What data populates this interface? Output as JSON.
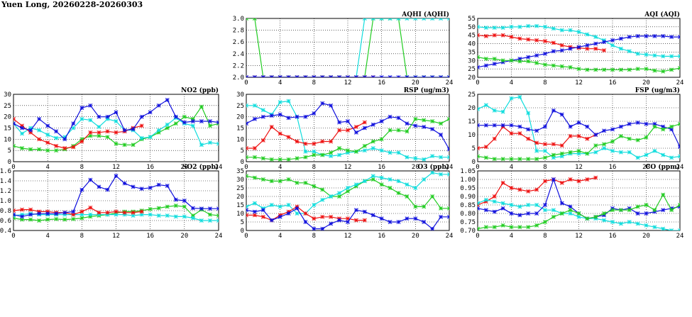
{
  "page": {
    "title": "Yuen Long, 20260228-20260303"
  },
  "colors": {
    "red": "#ee1111",
    "blue": "#1111dd",
    "green": "#22cc22",
    "cyan": "#11dddd"
  },
  "chart_data": [
    {
      "id": "aqhi",
      "type": "line",
      "title": "AQHI (AQHI)",
      "xlim": [
        0,
        24
      ],
      "ylim": [
        2.0,
        3.0
      ],
      "xticks": [
        "0",
        "4",
        "8",
        "12",
        "16",
        "20",
        "24"
      ],
      "yticks": [
        "2.0",
        "2.2",
        "2.4",
        "2.6",
        "2.8",
        "3.0"
      ],
      "series": [
        {
          "color": "green",
          "values": [
            3,
            3,
            2,
            2,
            2,
            2,
            2,
            2,
            2,
            2,
            2,
            2,
            2,
            2,
            2,
            3,
            3,
            3,
            3,
            2,
            2,
            2,
            2,
            2,
            2
          ]
        },
        {
          "color": "cyan",
          "values": [
            2,
            2,
            2,
            2,
            2,
            2,
            2,
            2,
            2,
            2,
            2,
            2,
            2,
            2,
            3,
            3,
            3,
            3,
            3,
            3,
            3,
            3,
            3,
            3,
            3
          ]
        },
        {
          "color": "red",
          "values": [
            2,
            2,
            2,
            2,
            2,
            2,
            2,
            2,
            2,
            2,
            2,
            2,
            2,
            2,
            2,
            2,
            null,
            null,
            null,
            null,
            null,
            null,
            null,
            null,
            null
          ]
        },
        {
          "color": "blue",
          "values": [
            2,
            2,
            2,
            2,
            2,
            2,
            2,
            2,
            2,
            2,
            2,
            2,
            2,
            2,
            2,
            2,
            2,
            2,
            2,
            2,
            2,
            2,
            2,
            2,
            2
          ]
        }
      ]
    },
    {
      "id": "aqi",
      "type": "line",
      "title": "AQI (AQI)",
      "xlim": [
        0,
        24
      ],
      "ylim": [
        20,
        55
      ],
      "xticks": [
        "0",
        "4",
        "8",
        "12",
        "16",
        "20",
        "24"
      ],
      "yticks": [
        "20",
        "25",
        "30",
        "35",
        "40",
        "45",
        "50",
        "55"
      ],
      "series": [
        {
          "color": "cyan",
          "values": [
            50,
            49.5,
            49.5,
            49.5,
            50,
            50,
            50.5,
            50.5,
            50,
            49,
            48,
            48,
            47,
            45.5,
            44,
            42,
            39,
            37,
            35.5,
            34,
            33.5,
            33,
            32.5,
            32.5,
            32.5
          ]
        },
        {
          "color": "red",
          "values": [
            45,
            44.5,
            45,
            45,
            44,
            43,
            42.5,
            42,
            41.5,
            40.5,
            39,
            38,
            37.5,
            37,
            37,
            36,
            null,
            null,
            null,
            null,
            null,
            null,
            null,
            null,
            null
          ]
        },
        {
          "color": "blue",
          "values": [
            26,
            27,
            28,
            29,
            30,
            31,
            32,
            33,
            34,
            35.5,
            36,
            37,
            38,
            39,
            40,
            41,
            42,
            43,
            44,
            44.5,
            44.5,
            44.5,
            44.5,
            44,
            44
          ]
        },
        {
          "color": "green",
          "values": [
            32,
            31,
            31,
            30,
            30,
            29.5,
            29.5,
            28.5,
            27.5,
            27,
            26.5,
            26,
            25,
            24.5,
            24.5,
            24.5,
            24.5,
            24.5,
            24.5,
            25,
            25,
            24,
            23.5,
            24.5,
            25.5
          ]
        }
      ]
    },
    {
      "id": "no2",
      "type": "line",
      "title": "NO2 (ppb)",
      "xlim": [
        0,
        24
      ],
      "ylim": [
        0,
        30
      ],
      "xticks": [
        "0",
        "4",
        "8",
        "12",
        "16",
        "20",
        "24"
      ],
      "yticks": [
        "0",
        "5",
        "10",
        "15",
        "20",
        "25",
        "30"
      ],
      "series": [
        {
          "color": "green",
          "values": [
            7,
            6,
            5.5,
            5.5,
            5,
            5,
            5.5,
            7,
            10,
            11.5,
            11.5,
            11,
            8,
            7.5,
            7.5,
            10,
            11,
            13,
            15,
            17,
            20,
            19,
            24.5,
            16,
            17
          ]
        },
        {
          "color": "cyan",
          "values": [
            17,
            12.5,
            15,
            14,
            12,
            10.5,
            11,
            15,
            19,
            18.5,
            15.5,
            19,
            18,
            14,
            14,
            10.5,
            11,
            14,
            16.5,
            19.5,
            17,
            16,
            7.5,
            8.5,
            8
          ]
        },
        {
          "color": "red",
          "values": [
            19,
            16,
            13,
            10,
            8.5,
            7,
            6,
            6.5,
            9,
            13,
            13,
            13.5,
            13,
            13.5,
            15,
            16,
            null,
            null,
            null,
            null,
            null,
            null,
            null,
            null,
            null
          ]
        },
        {
          "color": "blue",
          "values": [
            17,
            15,
            14,
            19,
            16,
            13.5,
            10,
            17,
            24,
            25,
            20,
            20,
            22,
            14,
            14.5,
            20,
            22,
            25,
            27.5,
            20,
            17.5,
            18,
            18,
            18,
            17.5
          ]
        }
      ]
    },
    {
      "id": "rsp",
      "type": "line",
      "title": "RSP (ug/m3)",
      "xlim": [
        0,
        24
      ],
      "ylim": [
        0,
        30
      ],
      "xticks": [
        "0",
        "4",
        "8",
        "12",
        "16",
        "20",
        "24"
      ],
      "yticks": [
        "0",
        "5",
        "10",
        "15",
        "20",
        "25",
        "30"
      ],
      "series": [
        {
          "color": "cyan",
          "values": [
            25,
            25,
            23,
            21,
            26.5,
            27,
            20,
            4.5,
            4.5,
            3,
            2.5,
            3,
            4,
            4.5,
            5,
            6,
            5,
            4,
            4,
            2,
            1.5,
            1,
            2.5,
            2,
            2
          ]
        },
        {
          "color": "red",
          "values": [
            6,
            6,
            9.5,
            15.5,
            12.5,
            11,
            9,
            8,
            8,
            9,
            9,
            14,
            14,
            15.5,
            17.5,
            null,
            null,
            null,
            null,
            null,
            null,
            null,
            null,
            null,
            null
          ]
        },
        {
          "color": "blue",
          "values": [
            17,
            19,
            20,
            20.5,
            21,
            19.5,
            20,
            20,
            21.5,
            26,
            25,
            17.5,
            18,
            13,
            15,
            16.5,
            18,
            20,
            19.5,
            17,
            16,
            15.5,
            14.5,
            12,
            5.5
          ]
        },
        {
          "color": "green",
          "values": [
            2,
            2,
            1.5,
            1,
            1,
            1,
            1.5,
            2,
            3,
            3,
            4,
            6,
            5,
            4.5,
            7,
            9,
            10,
            14,
            14,
            13.5,
            19,
            18.5,
            18,
            17,
            19
          ]
        }
      ]
    },
    {
      "id": "fsp",
      "type": "line",
      "title": "FSP (ug/m3)",
      "xlim": [
        0,
        24
      ],
      "ylim": [
        0,
        25
      ],
      "xticks": [
        "0",
        "4",
        "8",
        "12",
        "16",
        "20",
        "24"
      ],
      "yticks": [
        "0",
        "5",
        "10",
        "15",
        "20",
        "25"
      ],
      "series": [
        {
          "color": "cyan",
          "values": [
            19.5,
            21,
            19,
            18.5,
            23.5,
            24,
            18,
            4,
            4,
            1.5,
            2,
            3,
            3,
            3,
            3.5,
            5,
            4,
            3.5,
            3.5,
            1.5,
            2.5,
            4,
            2.5,
            1.5,
            2
          ]
        },
        {
          "color": "red",
          "values": [
            5,
            5.5,
            8.5,
            13,
            10.5,
            10.5,
            8.5,
            7,
            6.5,
            6.5,
            6,
            9.5,
            9.5,
            8.5,
            10,
            null,
            null,
            null,
            null,
            null,
            null,
            null,
            null,
            null,
            null
          ]
        },
        {
          "color": "blue",
          "values": [
            13.5,
            13.5,
            13.5,
            13.5,
            13.5,
            13,
            12,
            11.5,
            13,
            19,
            17.5,
            13,
            14.5,
            13,
            10,
            11.5,
            12,
            13,
            14,
            14.5,
            14,
            14,
            13,
            12,
            5.5
          ]
        },
        {
          "color": "green",
          "values": [
            2,
            1.5,
            1,
            1,
            1,
            1,
            1,
            1,
            1.5,
            2.5,
            3,
            3.5,
            4,
            3,
            6,
            6.5,
            7.5,
            9.5,
            8.5,
            8,
            9,
            13,
            12,
            13,
            14
          ]
        }
      ]
    },
    {
      "id": "so2",
      "type": "line",
      "title": "SO2 (ppb)",
      "xlim": [
        0,
        24
      ],
      "ylim": [
        0.4,
        1.6
      ],
      "xticks": [
        "0",
        "4",
        "8",
        "12",
        "16",
        "20",
        "24"
      ],
      "yticks": [
        "0.4",
        "0.6",
        "0.8",
        "1.0",
        "1.2",
        "1.4",
        "1.6"
      ],
      "series": [
        {
          "color": "green",
          "values": [
            0.65,
            0.62,
            0.62,
            0.6,
            0.62,
            0.63,
            0.62,
            0.63,
            0.65,
            0.68,
            0.7,
            0.72,
            0.75,
            0.78,
            0.78,
            0.8,
            0.83,
            0.85,
            0.88,
            0.9,
            0.88,
            0.7,
            0.82,
            0.72,
            0.7
          ]
        },
        {
          "color": "cyan",
          "values": [
            0.7,
            0.72,
            0.74,
            0.72,
            0.72,
            0.72,
            0.72,
            0.72,
            0.72,
            0.72,
            0.72,
            0.72,
            0.72,
            0.72,
            0.7,
            0.72,
            0.72,
            0.7,
            0.7,
            0.68,
            0.68,
            0.65,
            0.6,
            0.6,
            0.6
          ]
        },
        {
          "color": "red",
          "values": [
            0.8,
            0.82,
            0.82,
            0.78,
            0.78,
            0.76,
            0.76,
            0.72,
            0.78,
            0.86,
            0.76,
            0.76,
            0.78,
            0.76,
            0.76,
            0.78,
            null,
            null,
            null,
            null,
            null,
            null,
            null,
            null,
            null
          ]
        },
        {
          "color": "blue",
          "values": [
            0.72,
            0.68,
            0.72,
            0.74,
            0.74,
            0.74,
            0.76,
            0.78,
            1.22,
            1.42,
            1.28,
            1.22,
            1.5,
            1.35,
            1.28,
            1.24,
            1.26,
            1.32,
            1.3,
            1.02,
            1.0,
            0.85,
            0.84,
            0.84,
            0.84
          ]
        }
      ]
    },
    {
      "id": "o3",
      "type": "line",
      "title": "O3 (ppb)",
      "xlim": [
        0,
        24
      ],
      "ylim": [
        0,
        35
      ],
      "xticks": [
        "0",
        "4",
        "8",
        "12",
        "16",
        "20",
        "24"
      ],
      "yticks": [
        "0",
        "5",
        "10",
        "15",
        "20",
        "25",
        "30",
        "35"
      ],
      "series": [
        {
          "color": "green",
          "values": [
            32,
            31,
            30,
            29,
            29,
            30,
            28,
            28,
            26,
            24,
            20,
            20,
            23,
            26,
            29,
            30,
            27,
            25,
            22,
            20,
            14,
            14,
            20,
            13,
            13
          ]
        },
        {
          "color": "cyan",
          "values": [
            14,
            16,
            13,
            15,
            14,
            15,
            10,
            10,
            15,
            18,
            20,
            22,
            25,
            27,
            29,
            32,
            31,
            30,
            29,
            27,
            25,
            30,
            34,
            33,
            33
          ]
        },
        {
          "color": "red",
          "values": [
            9,
            9,
            8,
            6,
            9,
            11,
            14,
            10,
            7,
            8,
            8,
            7,
            7,
            6,
            6,
            null,
            null,
            null,
            null,
            null,
            null,
            null,
            null,
            null,
            null
          ]
        },
        {
          "color": "blue",
          "values": [
            12,
            11,
            12,
            6,
            8,
            10,
            13,
            5,
            1,
            1,
            4,
            6,
            5,
            12,
            11,
            9,
            7,
            5,
            5,
            7,
            7,
            5,
            1,
            8,
            8
          ]
        }
      ]
    },
    {
      "id": "co",
      "type": "line",
      "title": "CO (ppm)",
      "xlim": [
        0,
        24
      ],
      "ylim": [
        0.7,
        1.05
      ],
      "xticks": [
        "0",
        "4",
        "8",
        "12",
        "16",
        "20",
        "24"
      ],
      "yticks": [
        "0.70",
        "0.75",
        "0.80",
        "0.85",
        "0.90",
        "0.95",
        "1.00",
        "1.05"
      ],
      "series": [
        {
          "color": "red",
          "values": [
            0.85,
            0.87,
            0.9,
            0.98,
            0.95,
            0.94,
            0.93,
            0.94,
            0.99,
            1.0,
            0.98,
            1.0,
            0.99,
            1.0,
            1.01,
            null,
            null,
            null,
            null,
            null,
            null,
            null,
            null,
            null,
            null
          ]
        },
        {
          "color": "cyan",
          "values": [
            0.86,
            0.88,
            0.87,
            0.86,
            0.85,
            0.84,
            0.85,
            0.85,
            0.82,
            0.82,
            0.8,
            0.8,
            0.78,
            0.77,
            0.77,
            0.76,
            0.75,
            0.74,
            0.75,
            0.74,
            0.73,
            0.72,
            0.71,
            0.7,
            0.7
          ]
        },
        {
          "color": "blue",
          "values": [
            0.83,
            0.82,
            0.81,
            0.83,
            0.8,
            0.79,
            0.8,
            0.8,
            0.85,
            1.0,
            0.86,
            0.84,
            0.8,
            0.77,
            0.78,
            0.79,
            0.83,
            0.82,
            0.83,
            0.8,
            0.8,
            0.81,
            0.82,
            0.83,
            0.84
          ]
        },
        {
          "color": "green",
          "values": [
            0.71,
            0.72,
            0.72,
            0.73,
            0.72,
            0.72,
            0.72,
            0.73,
            0.75,
            0.78,
            0.8,
            0.82,
            0.8,
            0.77,
            0.78,
            0.8,
            0.82,
            0.82,
            0.82,
            0.84,
            0.85,
            0.82,
            0.91,
            0.82,
            0.85
          ]
        }
      ]
    }
  ]
}
